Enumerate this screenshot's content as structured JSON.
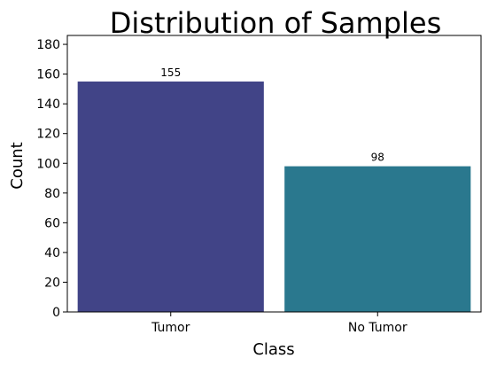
{
  "chart_data": {
    "type": "bar",
    "title": "Distribution of Samples",
    "xlabel": "Class",
    "ylabel": "Count",
    "categories": [
      "Tumor",
      "No Tumor"
    ],
    "values": [
      155,
      98
    ],
    "data_labels": [
      "155",
      "98"
    ],
    "colors": [
      "#414487",
      "#2a788e"
    ],
    "ylim": [
      0,
      186
    ],
    "yticks": [
      0,
      20,
      40,
      60,
      80,
      100,
      120,
      140,
      160,
      180
    ],
    "grid": false,
    "legend": "none"
  }
}
